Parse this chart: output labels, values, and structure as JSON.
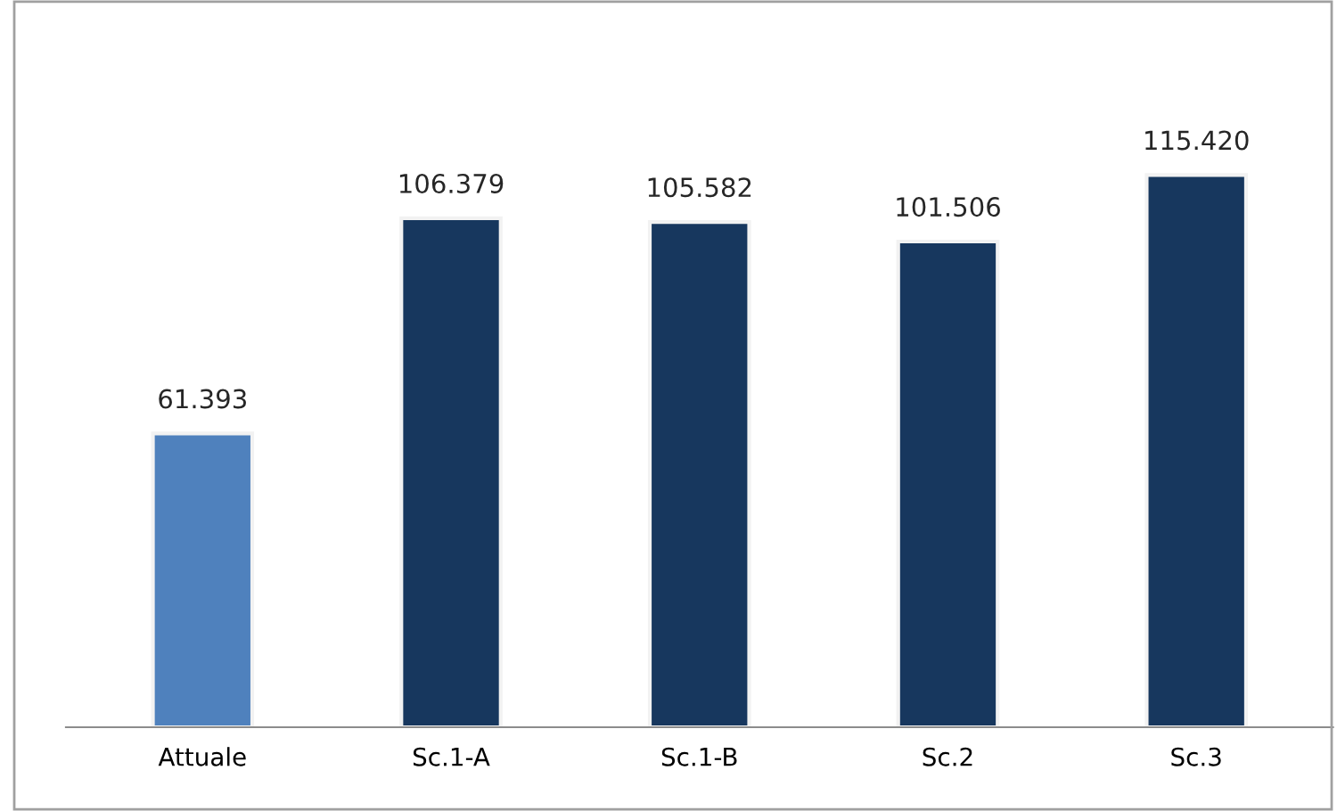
{
  "chart_data": {
    "type": "bar",
    "categories": [
      "Attuale",
      "Sc.1-A",
      "Sc.1-B",
      "Sc.2",
      "Sc.3"
    ],
    "values": [
      61393,
      106379,
      105582,
      101506,
      115420
    ],
    "colors": [
      "#4f81bd",
      "#17375e",
      "#17375e",
      "#17375e",
      "#17375e"
    ],
    "value_labels": [
      "61.393",
      "106.379",
      "105.582",
      "101.506",
      "115.420"
    ],
    "grid": false,
    "legend": false
  }
}
